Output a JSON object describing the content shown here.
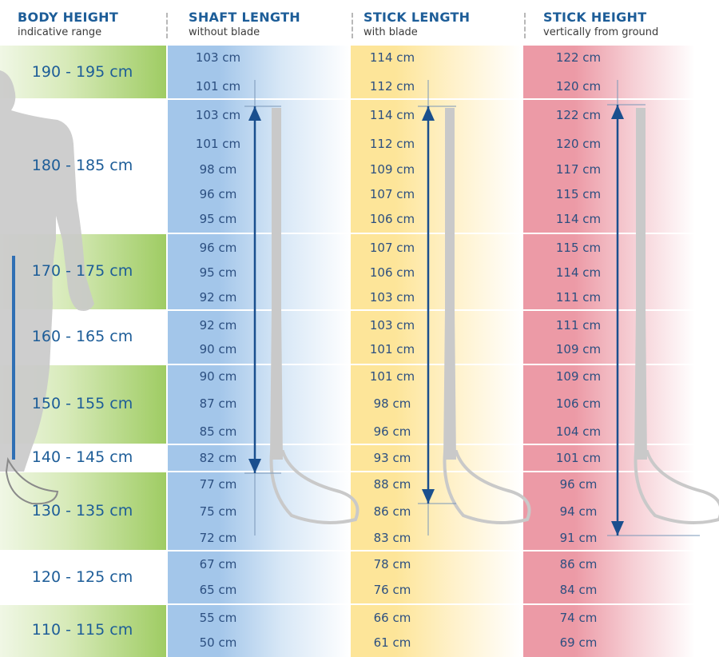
{
  "headers": [
    {
      "title": "BODY HEIGHT",
      "subtitle": "indicative range"
    },
    {
      "title": "SHAFT LENGTH",
      "subtitle": "without blade"
    },
    {
      "title": "STICK LENGTH",
      "subtitle": "with blade"
    },
    {
      "title": "STICK HEIGHT",
      "subtitle": "vertically from ground"
    }
  ],
  "rows": [
    {
      "body": "190 - 195 cm",
      "shaft": [
        "103 cm",
        "101 cm"
      ],
      "stick": [
        "114 cm",
        "112 cm"
      ],
      "height": [
        "122 cm",
        "120 cm"
      ]
    },
    {
      "body": "180 - 185 cm",
      "shaft": [
        "103 cm",
        "101 cm",
        "98 cm",
        "96 cm",
        "95 cm"
      ],
      "stick": [
        "114 cm",
        "112 cm",
        "109 cm",
        "107 cm",
        "106 cm"
      ],
      "height": [
        "122 cm",
        "120 cm",
        "117 cm",
        "115 cm",
        "114 cm"
      ]
    },
    {
      "body": "170 - 175 cm",
      "shaft": [
        "96 cm",
        "95 cm",
        "92 cm"
      ],
      "stick": [
        "107 cm",
        "106 cm",
        "103 cm"
      ],
      "height": [
        "115 cm",
        "114 cm",
        "111 cm"
      ]
    },
    {
      "body": "160 - 165 cm",
      "shaft": [
        "92 cm",
        "90 cm"
      ],
      "stick": [
        "103 cm",
        "101 cm"
      ],
      "height": [
        "111 cm",
        "109 cm"
      ]
    },
    {
      "body": "150 - 155 cm",
      "shaft": [
        "90 cm",
        "87 cm",
        "85 cm"
      ],
      "stick": [
        "101 cm",
        "98 cm",
        "96 cm"
      ],
      "height": [
        "109 cm",
        "106 cm",
        "104 cm"
      ]
    },
    {
      "body": "140 - 145 cm",
      "shaft": [
        "82 cm"
      ],
      "stick": [
        "93 cm"
      ],
      "height": [
        "101 cm"
      ]
    },
    {
      "body": "130 - 135 cm",
      "shaft": [
        "77 cm",
        "75 cm",
        "72 cm"
      ],
      "stick": [
        "88 cm",
        "86 cm",
        "83 cm"
      ],
      "height": [
        "96 cm",
        "94 cm",
        "91 cm"
      ]
    },
    {
      "body": "120 - 125 cm",
      "shaft": [
        "67 cm",
        "65 cm"
      ],
      "stick": [
        "78 cm",
        "76 cm"
      ],
      "height": [
        "86 cm",
        "84 cm"
      ]
    },
    {
      "body": "110 - 115 cm",
      "shaft": [
        "55 cm",
        "50 cm"
      ],
      "stick": [
        "66 cm",
        "61 cm"
      ],
      "height": [
        "74 cm",
        "69 cm"
      ]
    }
  ],
  "colors": {
    "heading_text": "#1d5d98",
    "value_text": "#2c4f80",
    "shaft_column": "#a3c6ea",
    "stick_column": "#fde599",
    "height_column": "#ec9aa6",
    "body_band_green": "#9fcc63",
    "arrow": "#1a4f8e",
    "silhouette": "#c9c9c9"
  },
  "icons": [
    "person-silhouette-icon",
    "floorball-stick-icon",
    "measurement-arrow-icon"
  ]
}
